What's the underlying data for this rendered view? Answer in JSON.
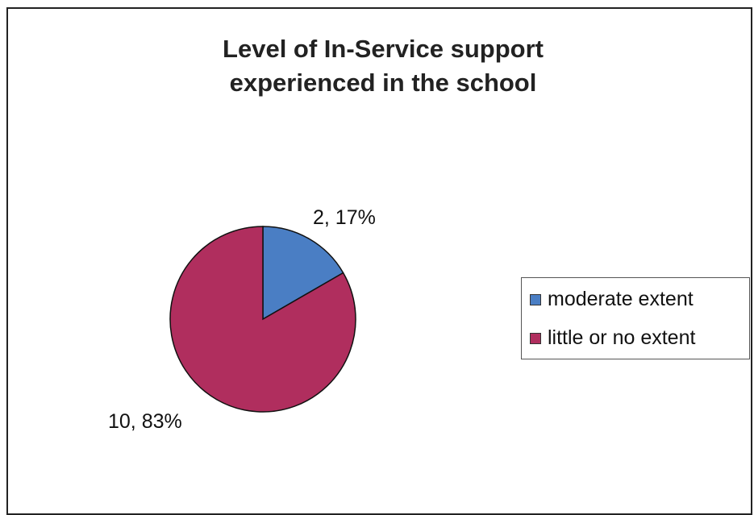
{
  "chart_data": {
    "type": "pie",
    "title": [
      "Level of In-Service support",
      "experienced in the school"
    ],
    "slices": [
      {
        "name": "moderate extent",
        "value": 2,
        "percent": 17,
        "label": "2, 17%",
        "color": "#4a7ec4"
      },
      {
        "name": "little or no extent",
        "value": 10,
        "percent": 83,
        "label": "10, 83%",
        "color": "#b02e5e"
      }
    ],
    "legend_position": "right"
  }
}
